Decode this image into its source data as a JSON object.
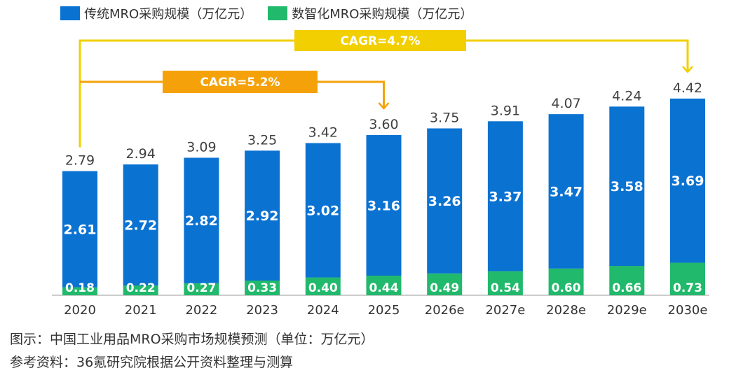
{
  "legend": {
    "traditional": "传统MRO采购规模（万亿元）",
    "digital": "数智化MRO采购规模（万亿元）"
  },
  "colors": {
    "traditional": "#0a72d1",
    "digital": "#21b96b",
    "cagr_short": "#f5a20a",
    "cagr_long": "#f2cf00"
  },
  "annotations": {
    "cagr_2020_2025": "CAGR=5.2%",
    "cagr_2020_2030": "CAGR=4.7%"
  },
  "caption": "图示：中国工业用品MRO采购市场规模预测（单位：万亿元）",
  "source": "参考资料：36氪研究院根据公开资料整理与测算",
  "chart_data": {
    "type": "bar",
    "stacked": true,
    "categories": [
      "2020",
      "2021",
      "2022",
      "2023",
      "2024",
      "2025",
      "2026e",
      "2027e",
      "2028e",
      "2029e",
      "2030e"
    ],
    "series": [
      {
        "name": "传统MRO采购规模（万亿元）",
        "values": [
          "2.61",
          "2.72",
          "2.82",
          "2.92",
          "3.02",
          "3.16",
          "3.26",
          "3.37",
          "3.47",
          "3.58",
          "3.69"
        ]
      },
      {
        "name": "数智化MRO采购规模（万亿元）",
        "values": [
          "0.18",
          "0.22",
          "0.27",
          "0.33",
          "0.40",
          "0.44",
          "0.49",
          "0.54",
          "0.60",
          "0.66",
          "0.73"
        ]
      }
    ],
    "totals": [
      "2.79",
      "2.94",
      "3.09",
      "3.25",
      "3.42",
      "3.60",
      "3.75",
      "3.91",
      "4.07",
      "4.24",
      "4.42"
    ],
    "legend_position": "top-left",
    "grid": false
  }
}
